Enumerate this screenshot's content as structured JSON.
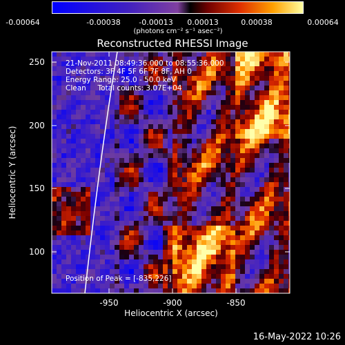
{
  "colorbar": {
    "ticks": [
      "-0.00064",
      "-0.00038",
      "-0.00013",
      "0.00013",
      "0.00038",
      "0.00064"
    ],
    "unit_label": "(photons cm⁻² s⁻¹ asec⁻²)"
  },
  "title": "Reconstructed RHESSI Image",
  "info": {
    "line1": "21-Nov-2011 08:49:36.000 to 08:55:36.000",
    "line2": "Detectors: 3F 4F 5F 6F 7F 8F, AH 0",
    "line3": "Energy Range: 25.0 - 50.0 keV",
    "line4": "Clean     Total counts: 3.07E+04"
  },
  "peak": "Position of Peak = [-835,226]",
  "axes": {
    "xlabel": "Heliocentric X (arcsec)",
    "ylabel": "Heliocentric Y (arcsec)",
    "xticks": [
      "-950",
      "-900",
      "-850"
    ],
    "yticks": [
      "250",
      "200",
      "150",
      "100"
    ]
  },
  "timestamp": "16-May-2022 10:26"
}
